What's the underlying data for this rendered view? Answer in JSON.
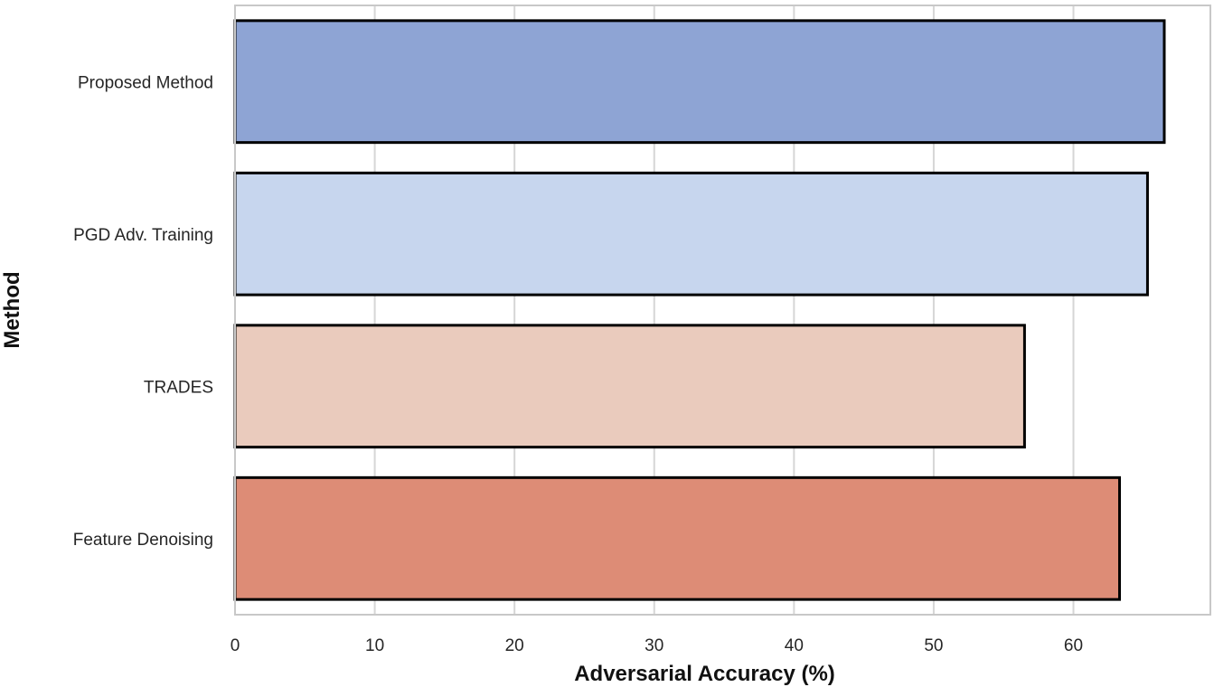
{
  "chart_data": {
    "type": "bar",
    "orientation": "horizontal",
    "categories": [
      "Proposed Method",
      "PGD Adv. Training",
      "TRADES",
      "Feature Denoising"
    ],
    "values": [
      66.5,
      65.3,
      56.5,
      63.3
    ],
    "colors": [
      "#8ea4d4",
      "#c7d6ee",
      "#eacbbd",
      "#dd8c76"
    ],
    "xlabel": "Adversarial Accuracy (%)",
    "ylabel": "Method",
    "xticks": [
      0,
      10,
      20,
      30,
      40,
      50,
      60
    ],
    "xlim": [
      0,
      69.8
    ],
    "grid": true,
    "legend": "none"
  }
}
